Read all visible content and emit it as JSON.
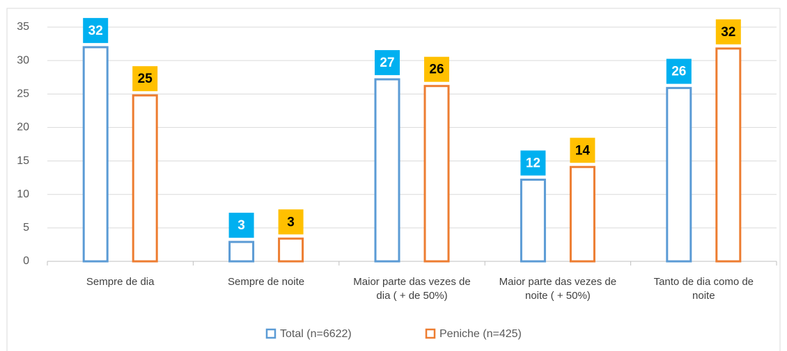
{
  "chart_data": {
    "type": "bar",
    "categories": [
      "Sempre de dia",
      "Sempre de noite",
      "Maior parte das vezes de dia ( + de 50%)",
      "Maior parte das vezes de noite ( + 50%)",
      "Tanto de dia como de noite"
    ],
    "series": [
      {
        "name": "Total (n=6622)",
        "color": "#5b9bd5",
        "label_box_color": "#00b0f0",
        "label_text_color": "#ffffff",
        "values": [
          32.0,
          2.9,
          27.2,
          12.2,
          25.9
        ],
        "value_labels": [
          "32",
          "3",
          "27",
          "12",
          "26"
        ]
      },
      {
        "name": "Peniche (n=425)",
        "color": "#ed7d31",
        "label_box_color": "#ffc000",
        "label_text_color": "#000000",
        "values": [
          24.8,
          3.4,
          26.2,
          14.1,
          31.8
        ],
        "value_labels": [
          "25",
          "3",
          "26",
          "14",
          "32"
        ]
      }
    ],
    "ylim": [
      0,
      35
    ],
    "yticks": [
      0,
      5,
      10,
      15,
      20,
      25,
      30,
      35
    ],
    "grid": true,
    "legend": "bottom"
  }
}
